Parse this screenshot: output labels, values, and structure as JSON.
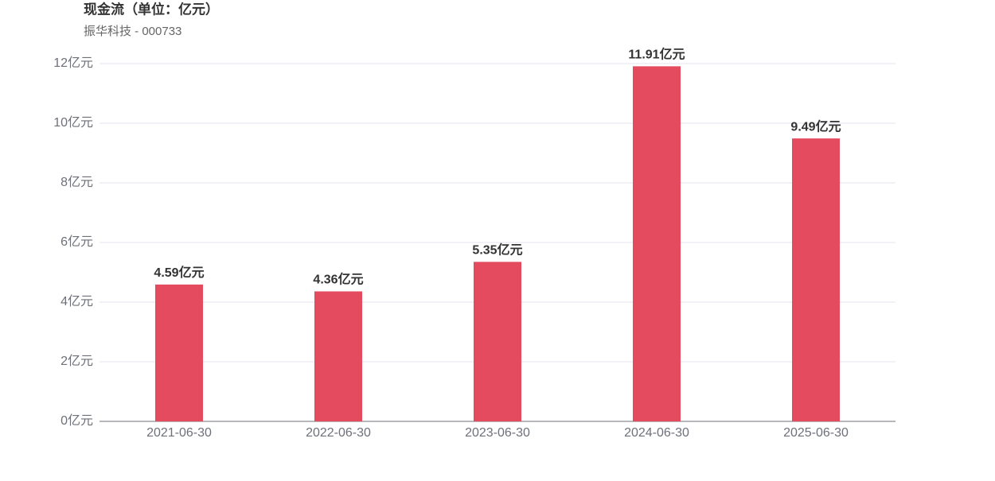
{
  "chart_data": {
    "type": "bar",
    "title": "现金流（单位：亿元）",
    "subtitle": "振华科技 - 000733",
    "categories": [
      "2021-06-30",
      "2022-06-30",
      "2023-06-30",
      "2024-06-30",
      "2025-06-30"
    ],
    "values": [
      4.59,
      4.36,
      5.35,
      11.91,
      9.49
    ],
    "value_labels": [
      "4.59亿元",
      "4.36亿元",
      "5.35亿元",
      "11.91亿元",
      "9.49亿元"
    ],
    "color": "#e54b5f",
    "ylim": [
      0,
      12
    ],
    "yticks": [
      {
        "value": 0,
        "label": "0亿元"
      },
      {
        "value": 2,
        "label": "2亿元"
      },
      {
        "value": 4,
        "label": "4亿元"
      },
      {
        "value": 6,
        "label": "6亿元"
      },
      {
        "value": 8,
        "label": "8亿元"
      },
      {
        "value": 10,
        "label": "10亿元"
      },
      {
        "value": 12,
        "label": "12亿元"
      }
    ],
    "grid": true
  }
}
